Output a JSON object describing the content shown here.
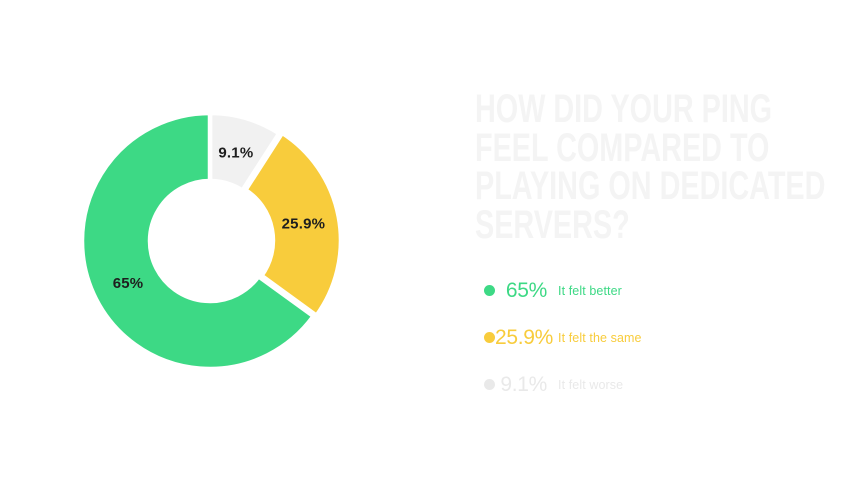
{
  "page": {
    "background": "#ffffff"
  },
  "title": {
    "text": "HOW DID YOUR PING FEEL COMPARED TO PLAYING ON DEDICATED SERVERS?",
    "lines": [
      "HOW DID YOUR PING",
      "FEEL COMPARED TO",
      "PLAYING ON DEDICATED",
      "SERVERS?"
    ],
    "color": "#f4f4f4"
  },
  "chart_data": {
    "type": "pie",
    "variant": "donut",
    "title": "HOW DID YOUR PING FEEL COMPARED TO PLAYING ON DEDICATED SERVERS?",
    "start_angle_deg": 0,
    "direction": "clockwise",
    "inner_radius_ratio": 0.47,
    "legend_position": "right",
    "slices": [
      {
        "label": "It felt worse",
        "value": 9.1,
        "display": "9.1%",
        "color": "#f1f1f1",
        "label_color": "#1e1e1e",
        "offset": 0
      },
      {
        "label": "It felt the same",
        "value": 25.9,
        "display": "25.9%",
        "color": "#f8cc3c",
        "label_color": "#1e1e1e",
        "offset": 3
      },
      {
        "label": "It felt better",
        "value": 65,
        "display": "65%",
        "color": "#3dd985",
        "label_color": "#1e1e1e",
        "offset": 0
      }
    ]
  },
  "legend": {
    "items": [
      {
        "pct": "65%",
        "label": "It felt better",
        "color": "#3dd985"
      },
      {
        "pct": "25.9%",
        "label": "It felt the same",
        "color": "#f8cc3c"
      },
      {
        "pct": "9.1%",
        "label": "It felt worse",
        "color": "#e9e9e9"
      }
    ]
  }
}
